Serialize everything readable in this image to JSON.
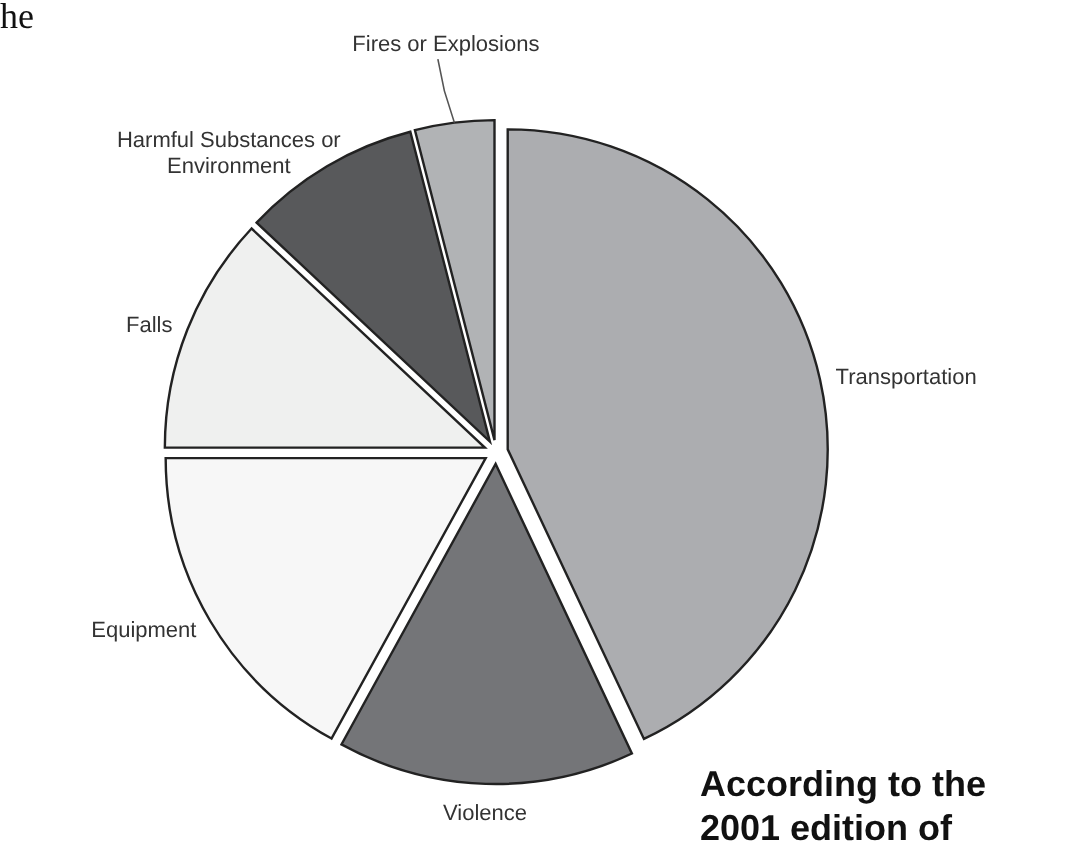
{
  "chart_data": {
    "type": "pie",
    "categories": [
      "Transportation",
      "Violence",
      "Equipment",
      "Falls",
      "Harmful Substances or Environment",
      "Fires or Explosions"
    ],
    "values": [
      43,
      15,
      17,
      12,
      9,
      4
    ],
    "colors": [
      "#acadb0",
      "#747578",
      "#f7f7f7",
      "#eff0ef",
      "#58595b",
      "#b1b3b5"
    ],
    "annotations": [
      "he",
      "According to the 2001 edition of"
    ]
  }
}
